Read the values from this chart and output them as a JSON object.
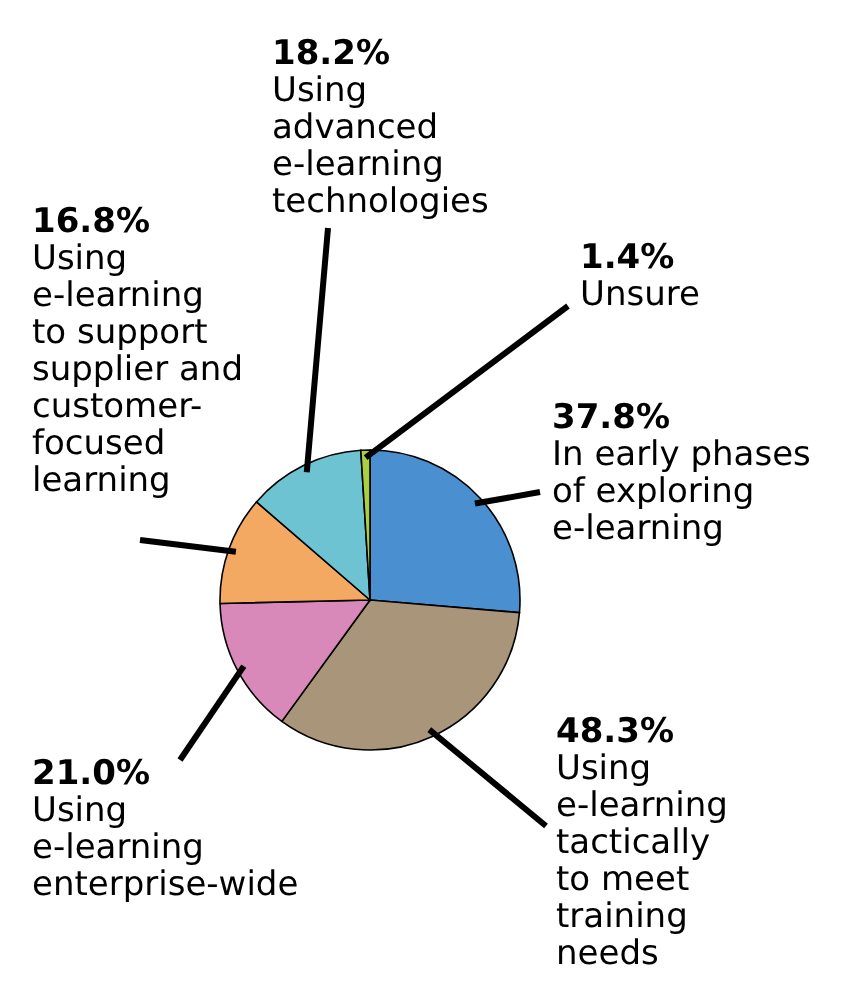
{
  "chart_data": {
    "type": "pie",
    "categories": [
      "In early phases\nof exploring\ne-learning",
      "Using\ne-learning\ntactically\nto meet\ntraining\nneeds",
      "Using\ne-learning\nenterprise-wide",
      "Using\ne-learning\nto support\nsupplier and\ncustomer-\nfocused\nlearning",
      "Using\nadvanced\ne-learning\ntechnologies",
      "Unsure"
    ],
    "values": [
      37.8,
      48.3,
      21.0,
      16.8,
      18.2,
      1.4
    ],
    "value_labels": [
      "37.8%",
      "48.3%",
      "21.0%",
      "16.8%",
      "18.2%",
      "1.4%"
    ],
    "colors": [
      "#4a8fd0",
      "#a8957a",
      "#d889b9",
      "#f4a962",
      "#6ec3d3",
      "#a9d045"
    ]
  }
}
